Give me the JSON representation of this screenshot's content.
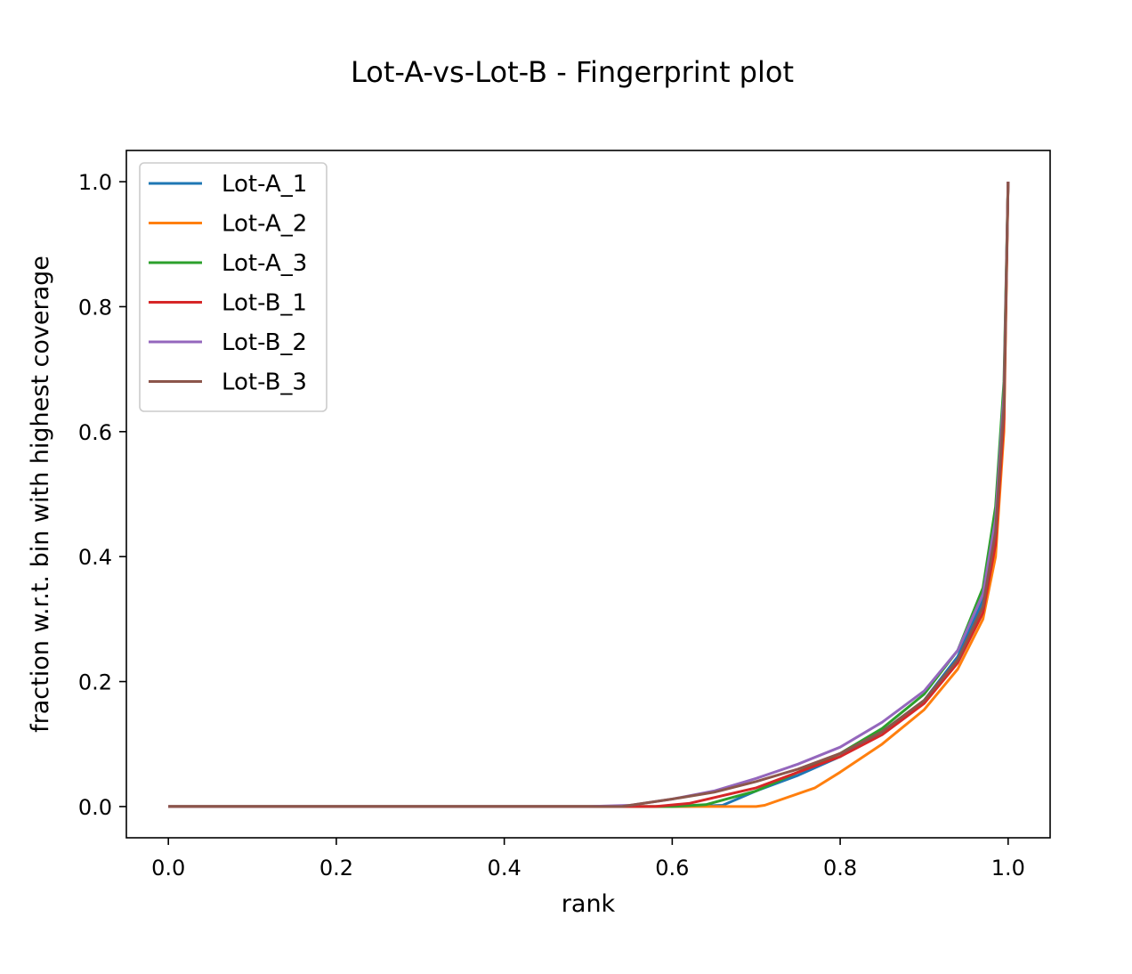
{
  "chart_data": {
    "type": "line",
    "title": "Lot-A-vs-Lot-B - Fingerprint plot",
    "xlabel": "rank",
    "ylabel": "fraction w.r.t. bin with highest coverage",
    "xlim": [
      -0.05,
      1.05
    ],
    "ylim": [
      -0.05,
      1.05
    ],
    "xticks": [
      0.0,
      0.2,
      0.4,
      0.6,
      0.8,
      1.0
    ],
    "yticks": [
      0.0,
      0.2,
      0.4,
      0.6,
      0.8,
      1.0
    ],
    "xtick_labels": [
      "0.0",
      "0.2",
      "0.4",
      "0.6",
      "0.8",
      "1.0"
    ],
    "ytick_labels": [
      "0.0",
      "0.2",
      "0.4",
      "0.6",
      "0.8",
      "1.0"
    ],
    "grid": false,
    "legend_position": "upper-left",
    "series": [
      {
        "name": "Lot-A_1",
        "color": "#1f77b4",
        "x": [
          0.0,
          0.5,
          0.62,
          0.66,
          0.7,
          0.75,
          0.8,
          0.85,
          0.9,
          0.94,
          0.97,
          0.985,
          0.995,
          1.0
        ],
        "y": [
          0.0,
          0.0,
          0.0,
          0.002,
          0.025,
          0.05,
          0.08,
          0.12,
          0.17,
          0.24,
          0.33,
          0.45,
          0.65,
          1.0
        ]
      },
      {
        "name": "Lot-A_2",
        "color": "#ff7f0e",
        "x": [
          0.0,
          0.5,
          0.6,
          0.7,
          0.71,
          0.77,
          0.8,
          0.85,
          0.9,
          0.94,
          0.97,
          0.985,
          0.995,
          1.0
        ],
        "y": [
          0.0,
          0.0,
          0.0,
          0.0,
          0.002,
          0.03,
          0.055,
          0.1,
          0.155,
          0.22,
          0.3,
          0.4,
          0.6,
          1.0
        ]
      },
      {
        "name": "Lot-A_3",
        "color": "#2ca02c",
        "x": [
          0.0,
          0.5,
          0.6,
          0.64,
          0.7,
          0.75,
          0.8,
          0.85,
          0.9,
          0.94,
          0.97,
          0.985,
          0.995,
          1.0
        ],
        "y": [
          0.0,
          0.0,
          0.0,
          0.003,
          0.025,
          0.055,
          0.085,
          0.125,
          0.18,
          0.25,
          0.35,
          0.48,
          0.68,
          1.0
        ]
      },
      {
        "name": "Lot-B_1",
        "color": "#d62728",
        "x": [
          0.0,
          0.5,
          0.58,
          0.62,
          0.7,
          0.75,
          0.8,
          0.85,
          0.9,
          0.94,
          0.97,
          0.985,
          0.995,
          1.0
        ],
        "y": [
          0.0,
          0.0,
          0.0,
          0.005,
          0.03,
          0.055,
          0.08,
          0.115,
          0.165,
          0.23,
          0.31,
          0.42,
          0.62,
          1.0
        ]
      },
      {
        "name": "Lot-B_2",
        "color": "#9467bd",
        "x": [
          0.0,
          0.5,
          0.55,
          0.6,
          0.65,
          0.7,
          0.75,
          0.8,
          0.85,
          0.9,
          0.94,
          0.97,
          0.985,
          0.995,
          1.0
        ],
        "y": [
          0.0,
          0.0,
          0.002,
          0.012,
          0.025,
          0.045,
          0.068,
          0.095,
          0.135,
          0.185,
          0.25,
          0.34,
          0.46,
          0.66,
          1.0
        ]
      },
      {
        "name": "Lot-B_3",
        "color": "#8c564b",
        "x": [
          0.0,
          0.5,
          0.54,
          0.6,
          0.65,
          0.7,
          0.75,
          0.8,
          0.85,
          0.9,
          0.94,
          0.97,
          0.985,
          0.995,
          1.0
        ],
        "y": [
          0.0,
          0.0,
          0.0,
          0.012,
          0.023,
          0.04,
          0.06,
          0.085,
          0.12,
          0.17,
          0.235,
          0.32,
          0.44,
          0.64,
          1.0
        ]
      }
    ]
  }
}
